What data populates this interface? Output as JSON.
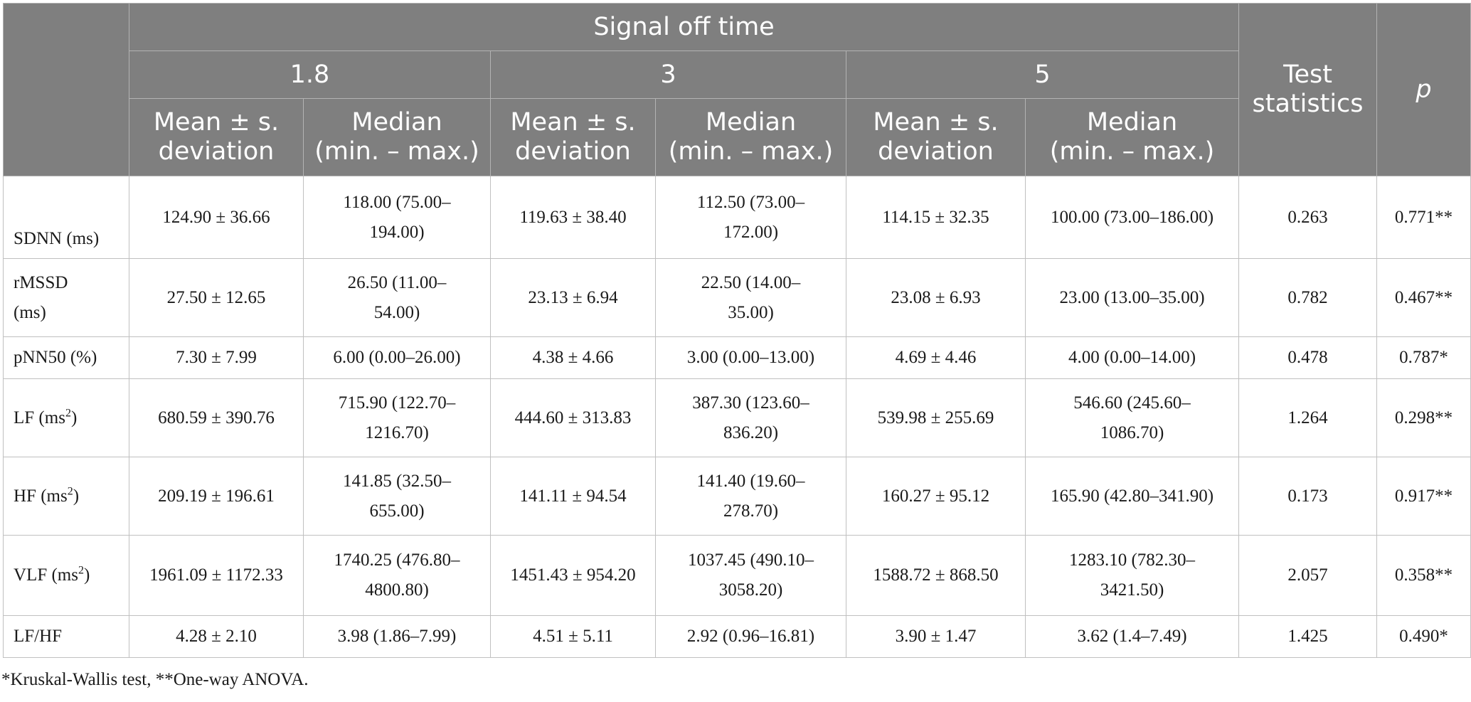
{
  "header": {
    "group_title": "Signal off time",
    "groups": [
      "1.8",
      "3",
      "5"
    ],
    "sub_mean": [
      "Mean ± s.",
      "deviation"
    ],
    "sub_median": [
      "Median",
      "(min. – max.)"
    ],
    "test_statistics": [
      "Test",
      "statistics"
    ],
    "p": "p"
  },
  "rows": [
    {
      "label": "SDNN (ms)",
      "label_sup": "",
      "m18": "124.90 ± 36.66",
      "md18": [
        "118.00 (75.00–",
        "194.00)"
      ],
      "m3": "119.63 ± 38.40",
      "md3": [
        "112.50 (73.00–",
        "172.00)"
      ],
      "m5": "114.15 ± 32.35",
      "md5": [
        "100.00 (73.00–186.00)"
      ],
      "stat": "0.263",
      "p": "0.771**"
    },
    {
      "label": "rMSSD (ms)",
      "label_lines": [
        "rMSSD",
        "(ms)"
      ],
      "label_sup": "",
      "m18": "27.50 ± 12.65",
      "md18": [
        "26.50 (11.00–",
        "54.00)"
      ],
      "m3": "23.13 ± 6.94",
      "md3": [
        "22.50 (14.00–",
        "35.00)"
      ],
      "m5": "23.08 ± 6.93",
      "md5": [
        "23.00 (13.00–35.00)"
      ],
      "stat": "0.782",
      "p": "0.467**"
    },
    {
      "label": "pNN50 (%)",
      "label_sup": "",
      "m18": "7.30 ± 7.99",
      "md18": [
        "6.00 (0.00–26.00)"
      ],
      "m3": "4.38 ± 4.66",
      "md3": [
        "3.00 (0.00–13.00)"
      ],
      "m5": "4.69 ± 4.46",
      "md5": [
        "4.00 (0.00–14.00)"
      ],
      "stat": "0.478",
      "p": "0.787*"
    },
    {
      "label_pre": "LF (ms",
      "label_sup": "2",
      "label_post": ")",
      "m18": "680.59 ± 390.76",
      "md18": [
        "715.90 (122.70–",
        "1216.70)"
      ],
      "m3": "444.60 ± 313.83",
      "md3": [
        "387.30 (123.60–",
        "836.20)"
      ],
      "m5": "539.98 ± 255.69",
      "md5": [
        "546.60 (245.60–",
        "1086.70)"
      ],
      "stat": "1.264",
      "p": "0.298**"
    },
    {
      "label_pre": "HF (ms",
      "label_sup": "2",
      "label_post": ")",
      "m18": "209.19 ± 196.61",
      "md18": [
        "141.85 (32.50–",
        "655.00)"
      ],
      "m3": "141.11 ± 94.54",
      "md3": [
        "141.40 (19.60–",
        "278.70)"
      ],
      "m5": "160.27 ± 95.12",
      "md5": [
        "165.90 (42.80–341.90)"
      ],
      "stat": "0.173",
      "p": "0.917**"
    },
    {
      "label_pre": "VLF (ms",
      "label_sup": "2",
      "label_post": ")",
      "m18": "1961.09 ± 1172.33",
      "md18": [
        "1740.25 (476.80–",
        "4800.80)"
      ],
      "m3": "1451.43 ± 954.20",
      "md3": [
        "1037.45 (490.10–",
        "3058.20)"
      ],
      "m5": "1588.72 ± 868.50",
      "md5": [
        "1283.10 (782.30–",
        "3421.50)"
      ],
      "stat": "2.057",
      "p": "0.358**"
    },
    {
      "label": "LF/HF",
      "label_sup": "",
      "m18": "4.28 ± 2.10",
      "md18": [
        "3.98 (1.86–7.99)"
      ],
      "m3": "4.51 ± 5.11",
      "md3": [
        "2.92 (0.96–16.81)"
      ],
      "m5": "3.90 ± 1.47",
      "md5": [
        "3.62 (1.4–7.49)"
      ],
      "stat": "1.425",
      "p": "0.490*"
    }
  ],
  "footnote": "*Kruskal-Wallis test, **One-way ANOVA."
}
